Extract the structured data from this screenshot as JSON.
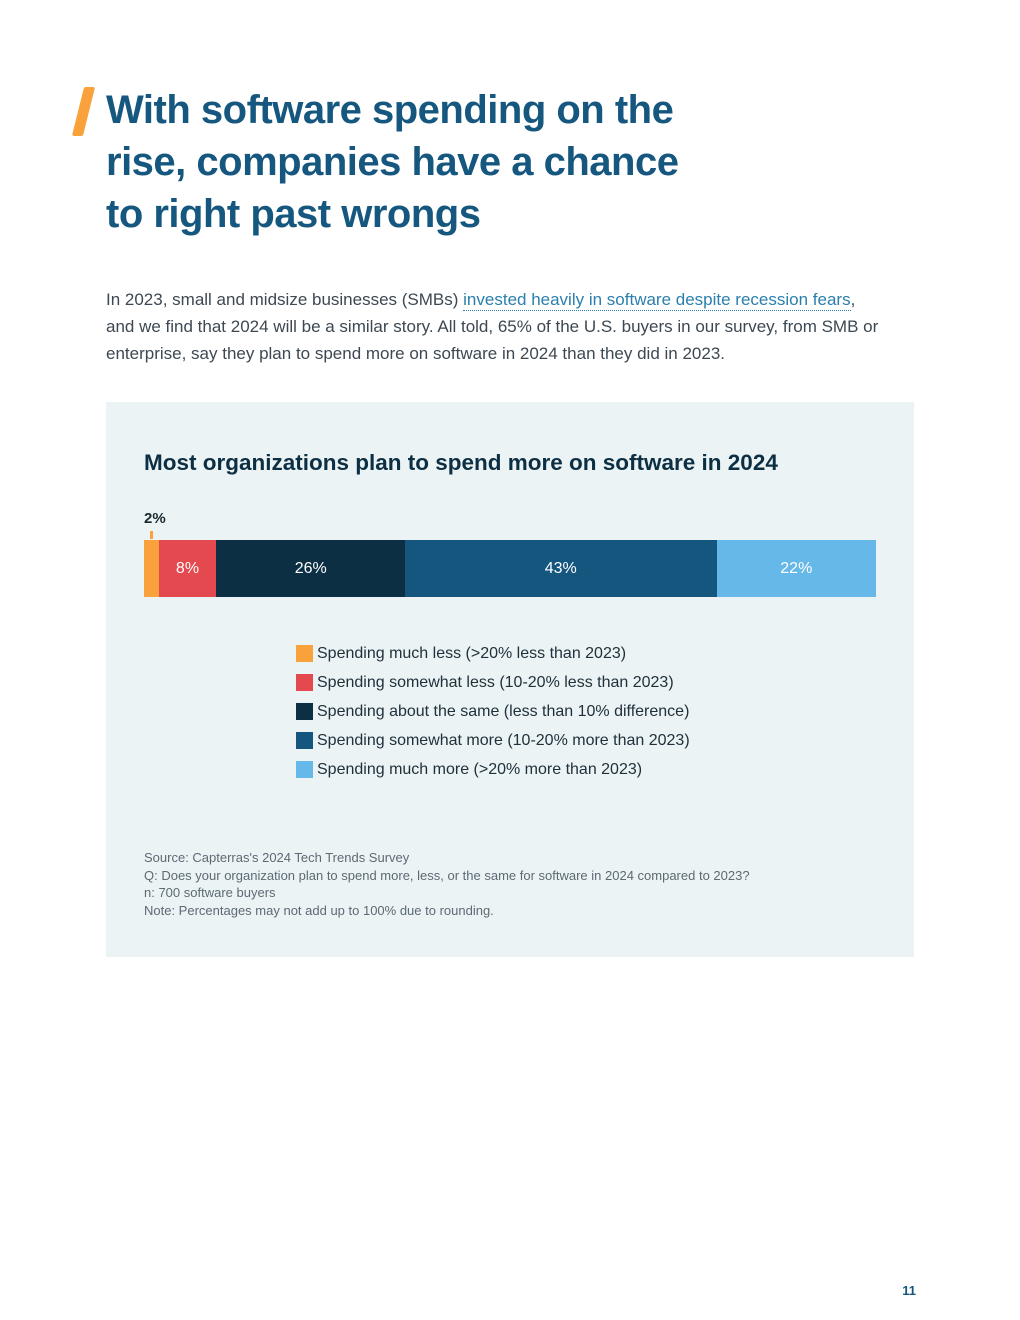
{
  "page": {
    "number": "11"
  },
  "heading": {
    "lines": [
      "With software spending on the",
      "rise, companies have a chance",
      "to right past wrongs"
    ]
  },
  "intro": {
    "pre_link": "In 2023, small and midsize businesses (SMBs) ",
    "link_text": "invested heavily in software despite recession fears",
    "post_link": ", and we find that 2024 will be a similar story. All told, 65% of the U.S. buyers in our survey, from SMB or enterprise, say they plan to spend more on software in 2024 than they did in 2023."
  },
  "chart_data": {
    "type": "bar",
    "stacked": true,
    "orientation": "horizontal",
    "title": "Most organizations plan to spend more on software in 2024",
    "unit": "percent of respondents",
    "legend_position": "below",
    "segments": [
      {
        "label": "Spending much less (>20% less than 2023)",
        "value": 2,
        "display": "2%",
        "color": "#F9A13B",
        "label_position": "above"
      },
      {
        "label": "Spending somewhat less (10-20% less than 2023)",
        "value": 8,
        "display": "8%",
        "color": "#E4494F",
        "label_position": "inside"
      },
      {
        "label": "Spending about the same (less than 10% difference)",
        "value": 26,
        "display": "26%",
        "color": "#0D2F44",
        "label_position": "inside"
      },
      {
        "label": "Spending somewhat more (10-20% more than 2023)",
        "value": 43,
        "display": "43%",
        "color": "#15567F",
        "label_position": "inside"
      },
      {
        "label": "Spending much more (>20% more than 2023)",
        "value": 22,
        "display": "22%",
        "color": "#66B8E8",
        "label_position": "inside"
      }
    ],
    "footnotes": {
      "source": "Source: Capterras's 2024 Tech Trends Survey",
      "question": "Q: Does your organization plan to spend more, less, or the same for software in 2024 compared to 2023?",
      "sample": "n: 700 software buyers",
      "note": "Note: Percentages may not add up to 100% due to rounding."
    }
  },
  "colors": {
    "accent_orange": "#F9A13B",
    "heading_blue": "#15577F",
    "card_background": "#EBF3F4"
  }
}
